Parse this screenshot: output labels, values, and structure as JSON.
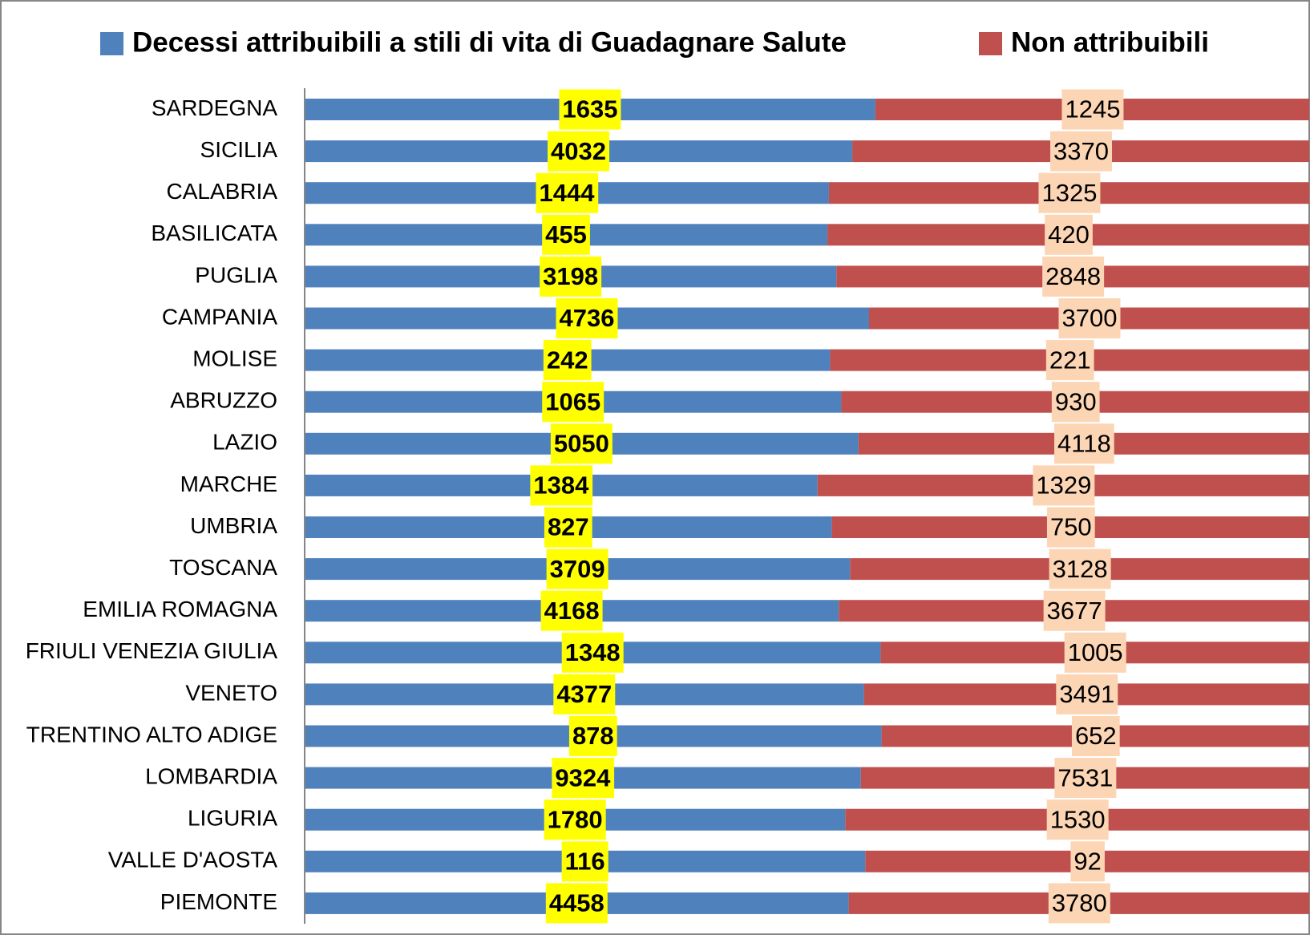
{
  "chart_data": {
    "type": "bar",
    "orientation": "horizontal",
    "stacking": "percent",
    "legend": "top",
    "categories": [
      "SARDEGNA",
      "SICILIA",
      "CALABRIA",
      "BASILICATA",
      "PUGLIA",
      "CAMPANIA",
      "MOLISE",
      "ABRUZZO",
      "LAZIO",
      "MARCHE",
      "UMBRIA",
      "TOSCANA",
      "EMILIA ROMAGNA",
      "FRIULI VENEZIA GIULIA",
      "VENETO",
      "TRENTINO ALTO ADIGE",
      "LOMBARDIA",
      "LIGURIA",
      "VALLE D'AOSTA",
      "PIEMONTE"
    ],
    "series": [
      {
        "name": "Decessi attribuibili a stili di vita di Guadagnare Salute",
        "color": "#4f81bd",
        "label_background": "#ffff00",
        "values": [
          1635,
          4032,
          1444,
          455,
          3198,
          4736,
          242,
          1065,
          5050,
          1384,
          827,
          3709,
          4168,
          1348,
          4377,
          878,
          9324,
          1780,
          116,
          4458
        ]
      },
      {
        "name": "Non attribuibili",
        "color": "#c0504d",
        "label_background": "#fcd5b5",
        "values": [
          1245,
          3370,
          1325,
          420,
          2848,
          3700,
          221,
          930,
          4118,
          1329,
          750,
          3128,
          3677,
          1005,
          3491,
          652,
          7531,
          1530,
          92,
          3780
        ]
      }
    ]
  }
}
